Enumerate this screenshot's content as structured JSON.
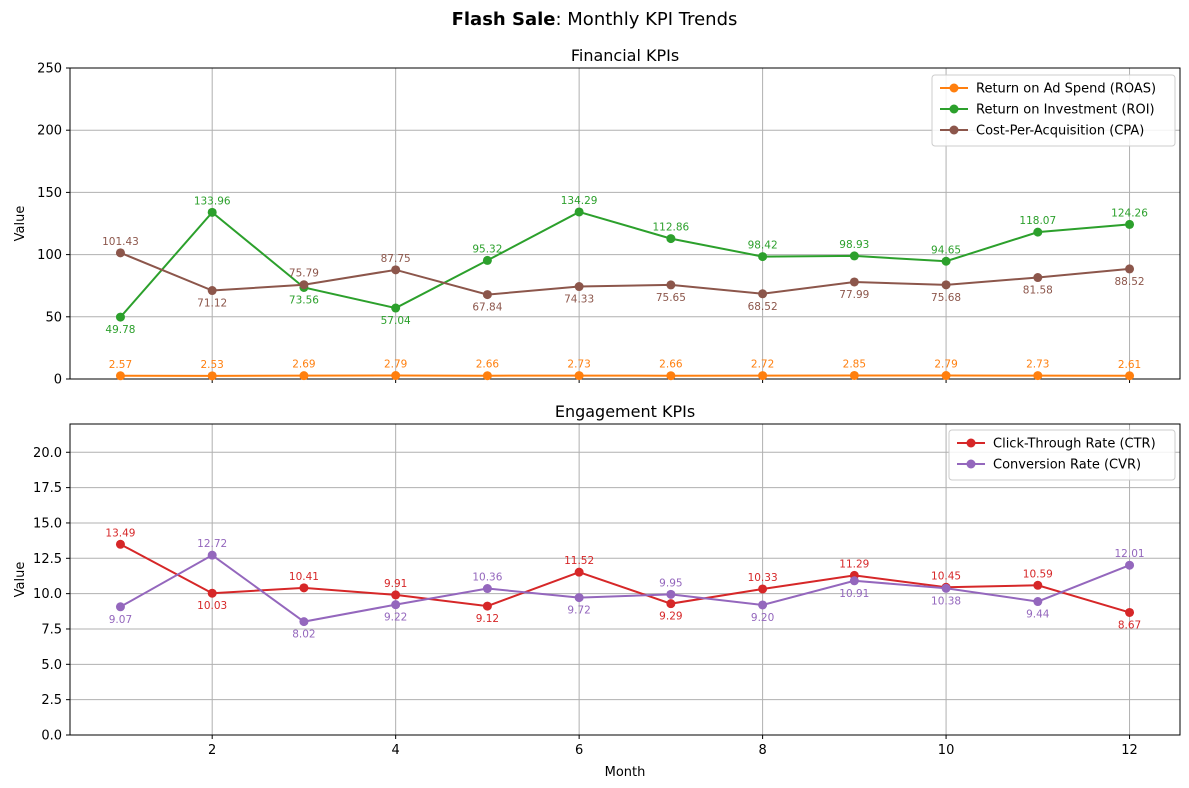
{
  "suptitle": {
    "bold": "Flash Sale",
    "rest": ": Monthly KPI Trends"
  },
  "x_label": "Month",
  "chart_data": [
    {
      "type": "line",
      "title": "Financial KPIs",
      "xlabel": "",
      "ylabel": "Value",
      "xlim": [
        0.45,
        12.55
      ],
      "ylim": [
        0,
        250
      ],
      "x": [
        1,
        2,
        3,
        4,
        5,
        6,
        7,
        8,
        9,
        10,
        11,
        12
      ],
      "xticks": [
        2,
        4,
        6,
        8,
        10,
        12
      ],
      "yticks": [
        0,
        50,
        100,
        150,
        200,
        250
      ],
      "grid": true,
      "legend": "top-right",
      "series": [
        {
          "name": "Return on Ad Spend (ROAS)",
          "color": "#ff7f0e",
          "values": [
            2.57,
            2.53,
            2.69,
            2.79,
            2.66,
            2.73,
            2.66,
            2.72,
            2.85,
            2.79,
            2.73,
            2.61
          ],
          "labels": [
            "2.57",
            "2.53",
            "2.69",
            "2.79",
            "2.66",
            "2.73",
            "2.66",
            "2.72",
            "2.85",
            "2.79",
            "2.73",
            "2.61"
          ]
        },
        {
          "name": "Return on Investment (ROI)",
          "color": "#2ca02c",
          "values": [
            49.78,
            133.96,
            73.56,
            57.04,
            95.32,
            134.29,
            112.86,
            98.42,
            98.93,
            94.65,
            118.07,
            124.26
          ],
          "labels": [
            "49.78",
            "133.96",
            "73.56",
            "57.04",
            "95.32",
            "134.29",
            "112.86",
            "98.42",
            "98.93",
            "94.65",
            "118.07",
            "124.26"
          ]
        },
        {
          "name": "Cost-Per-Acquisition (CPA)",
          "color": "#8c564b",
          "values": [
            101.43,
            71.12,
            75.79,
            87.75,
            67.84,
            74.33,
            75.65,
            68.52,
            77.99,
            75.68,
            81.58,
            88.52
          ],
          "labels": [
            "101.43",
            "71.12",
            "75.79",
            "87.75",
            "67.84",
            "74.33",
            "75.65",
            "68.52",
            "77.99",
            "75.68",
            "81.58",
            "88.52"
          ]
        }
      ]
    },
    {
      "type": "line",
      "title": "Engagement KPIs",
      "xlabel": "Month",
      "ylabel": "Value",
      "xlim": [
        0.45,
        12.55
      ],
      "ylim": [
        0,
        22
      ],
      "x": [
        1,
        2,
        3,
        4,
        5,
        6,
        7,
        8,
        9,
        10,
        11,
        12
      ],
      "xticks": [
        2,
        4,
        6,
        8,
        10,
        12
      ],
      "yticks": [
        0,
        2.5,
        5,
        7.5,
        10,
        12.5,
        15,
        17.5,
        20
      ],
      "ytick_labels": [
        "0.0",
        "2.5",
        "5.0",
        "7.5",
        "10.0",
        "12.5",
        "15.0",
        "17.5",
        "20.0"
      ],
      "grid": true,
      "legend": "top-right",
      "series": [
        {
          "name": "Click-Through Rate (CTR)",
          "color": "#d62728",
          "values": [
            13.49,
            10.03,
            10.41,
            9.91,
            9.12,
            11.52,
            9.29,
            10.33,
            11.29,
            10.45,
            10.59,
            8.67
          ],
          "labels": [
            "13.49",
            "10.03",
            "10.41",
            "9.91",
            "9.12",
            "11.52",
            "9.29",
            "10.33",
            "11.29",
            "10.45",
            "10.59",
            "8.67"
          ]
        },
        {
          "name": "Conversion Rate (CVR)",
          "color": "#9467bd",
          "values": [
            9.07,
            12.72,
            8.02,
            9.22,
            10.36,
            9.72,
            9.95,
            9.2,
            10.91,
            10.38,
            9.44,
            12.01
          ],
          "labels": [
            "9.07",
            "12.72",
            "8.02",
            "9.22",
            "10.36",
            "9.72",
            "9.95",
            "9.20",
            "10.91",
            "10.38",
            "9.44",
            "12.01"
          ]
        }
      ]
    }
  ]
}
